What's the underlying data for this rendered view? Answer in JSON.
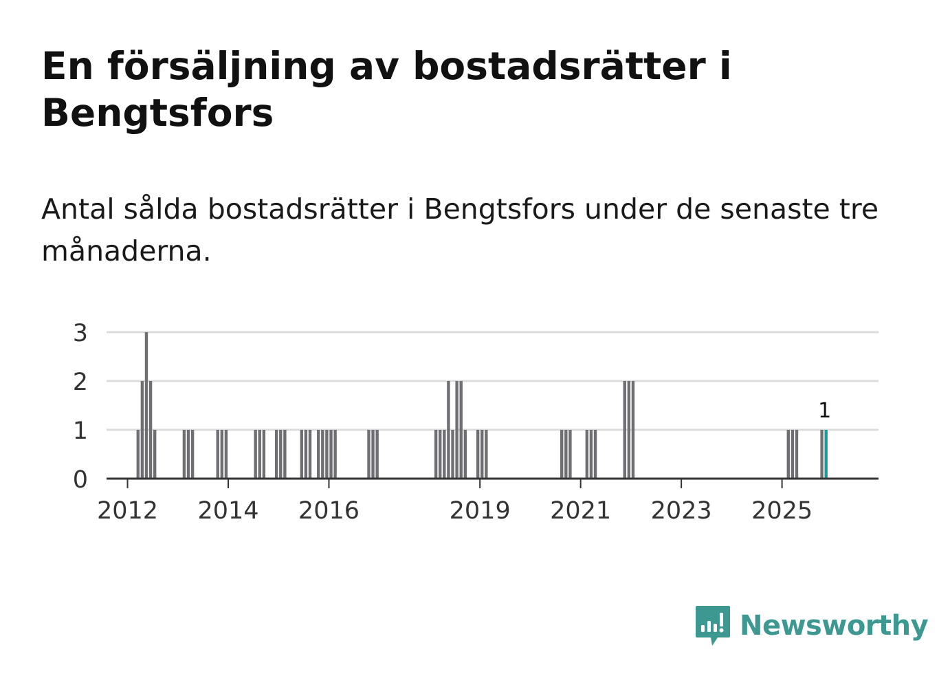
{
  "title": "En försäljning av bostadsrätter i Bengtsfors",
  "subtitle": "Antal sålda bostadsrätter i Bengtsfors under de senaste tre månaderna.",
  "brand": {
    "name": "Newsworthy"
  },
  "colors": {
    "bar": "#6f6f73",
    "highlight": "#1b9aa0",
    "grid": "#dcdcdc",
    "axis": "#333333",
    "brand": "#3d9891"
  },
  "chart_data": {
    "type": "bar",
    "title": "",
    "xlabel": "",
    "ylabel": "",
    "ylim": [
      0,
      3
    ],
    "yticks": [
      0,
      1,
      2,
      3
    ],
    "xlim": [
      "2011-08",
      "2026-12"
    ],
    "xticks": [
      "2012",
      "2014",
      "2016",
      "2019",
      "2021",
      "2023",
      "2025"
    ],
    "highlight_label": "1",
    "series": [
      {
        "name": "Antal sålda bostadsrätter",
        "x": [
          "2012-03",
          "2012-04",
          "2012-05",
          "2012-06",
          "2012-07",
          "2013-02",
          "2013-03",
          "2013-04",
          "2013-10",
          "2013-11",
          "2013-12",
          "2014-07",
          "2014-08",
          "2014-09",
          "2014-12",
          "2015-01",
          "2015-02",
          "2015-06",
          "2015-07",
          "2015-08",
          "2015-10",
          "2015-11",
          "2015-12",
          "2016-01",
          "2016-02",
          "2016-10",
          "2016-11",
          "2016-12",
          "2018-02",
          "2018-03",
          "2018-04",
          "2018-05",
          "2018-06",
          "2018-07",
          "2018-08",
          "2018-09",
          "2018-12",
          "2019-01",
          "2019-02",
          "2020-08",
          "2020-09",
          "2020-10",
          "2021-02",
          "2021-03",
          "2021-04",
          "2021-11",
          "2021-12",
          "2022-01",
          "2025-02",
          "2025-03",
          "2025-04",
          "2025-10",
          "2025-11"
        ],
        "values": [
          1,
          2,
          3,
          2,
          1,
          1,
          1,
          1,
          1,
          1,
          1,
          1,
          1,
          1,
          1,
          1,
          1,
          1,
          1,
          1,
          1,
          1,
          1,
          1,
          1,
          1,
          1,
          1,
          1,
          1,
          1,
          2,
          1,
          2,
          2,
          1,
          1,
          1,
          1,
          1,
          1,
          1,
          1,
          1,
          1,
          2,
          2,
          2,
          1,
          1,
          1,
          1,
          1
        ],
        "highlight_index": 52
      }
    ]
  }
}
